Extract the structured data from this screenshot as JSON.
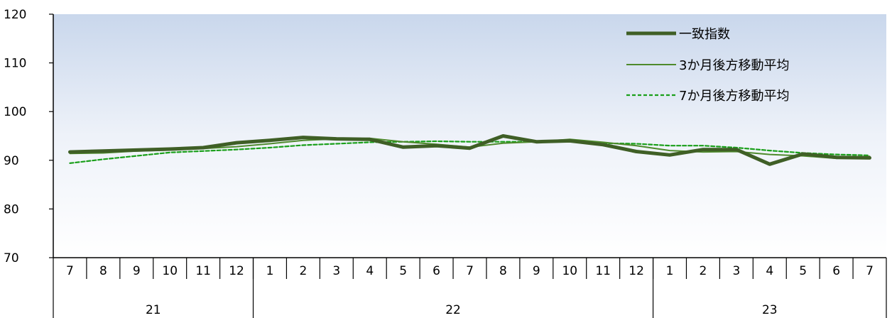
{
  "chart_data": {
    "type": "line",
    "categories": [
      "7",
      "8",
      "9",
      "10",
      "11",
      "12",
      "1",
      "2",
      "3",
      "4",
      "5",
      "6",
      "7",
      "8",
      "9",
      "10",
      "11",
      "12",
      "1",
      "2",
      "3",
      "4",
      "5",
      "6",
      "7"
    ],
    "year_groups": [
      {
        "label": "21",
        "span": 6
      },
      {
        "label": "22",
        "span": 12
      },
      {
        "label": "23",
        "span": 7
      }
    ],
    "y_ticks": [
      "120",
      "110",
      "100",
      "90",
      "80",
      "70"
    ],
    "ylim": [
      70,
      120
    ],
    "grid": false,
    "legend_position": "top-right",
    "series": [
      {
        "name": "一致指数",
        "color": "#3f5f26",
        "style": "thick",
        "values": [
          91.7,
          91.9,
          92.1,
          92.3,
          92.6,
          93.6,
          94.1,
          94.7,
          94.4,
          94.3,
          92.7,
          93.0,
          92.5,
          95.0,
          93.8,
          94.0,
          93.2,
          91.8,
          91.1,
          92.2,
          92.2,
          89.2,
          91.3,
          90.6,
          90.5
        ]
      },
      {
        "name": "3か月後方移動平均",
        "color": "#4e8a2c",
        "style": "thin",
        "values": [
          91.4,
          91.5,
          91.9,
          92.1,
          92.4,
          92.8,
          93.4,
          94.1,
          94.4,
          94.5,
          93.8,
          93.3,
          92.7,
          93.5,
          93.8,
          94.3,
          93.7,
          93.0,
          92.0,
          91.7,
          91.8,
          91.2,
          90.9,
          90.4,
          90.8
        ]
      },
      {
        "name": "7か月後方移動平均",
        "color": "#1a9f1a",
        "style": "dashed",
        "values": [
          89.4,
          90.2,
          90.9,
          91.6,
          91.9,
          92.2,
          92.6,
          93.1,
          93.4,
          93.7,
          93.8,
          93.9,
          93.8,
          93.8,
          93.8,
          93.8,
          93.5,
          93.4,
          93.0,
          93.0,
          92.6,
          92.0,
          91.5,
          91.2,
          91.0
        ]
      }
    ]
  }
}
